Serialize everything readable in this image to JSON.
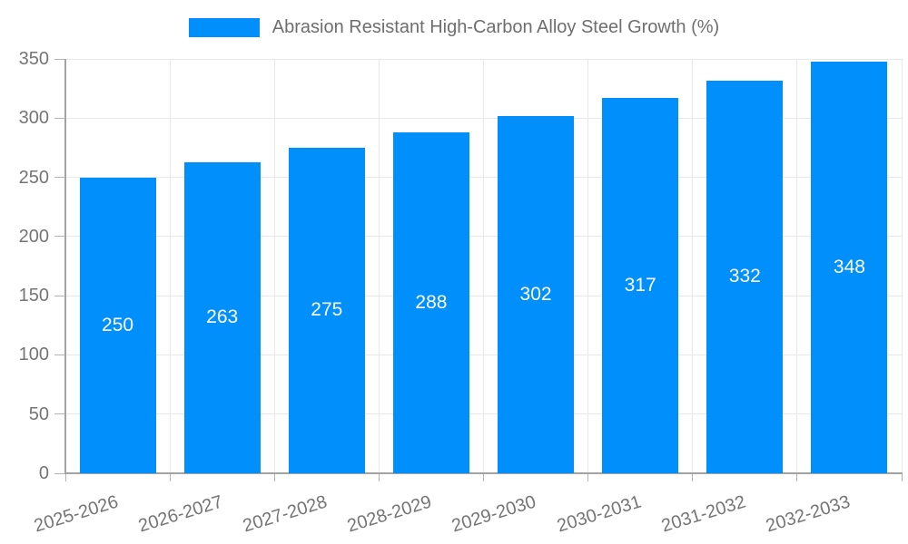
{
  "chart_data": {
    "type": "bar",
    "title": "Abrasion Resistant High-Carbon Alloy Steel Growth (%)",
    "categories": [
      "2025-2026",
      "2026-2027",
      "2027-2028",
      "2028-2029",
      "2029-2030",
      "2030-2031",
      "2031-2032",
      "2032-2033"
    ],
    "values": [
      250,
      263,
      275,
      288,
      302,
      317,
      332,
      348
    ],
    "xlabel": "",
    "ylabel": "",
    "ylim": [
      0,
      350
    ],
    "yticks": [
      0,
      50,
      100,
      150,
      200,
      250,
      300,
      350
    ],
    "grid": true,
    "bar_labels_visible": true,
    "legend_position": "top-center",
    "x_label_rotation_deg": -17
  },
  "colors": {
    "bar": "#008ffb",
    "bar_label": "#ffffff",
    "grid": "#e8e8e8",
    "axis_line": "#a3a3a3",
    "tick": "#b3b3b3",
    "axis_text": "#757575",
    "title_text": "#6e6e6e",
    "background": "#ffffff"
  }
}
